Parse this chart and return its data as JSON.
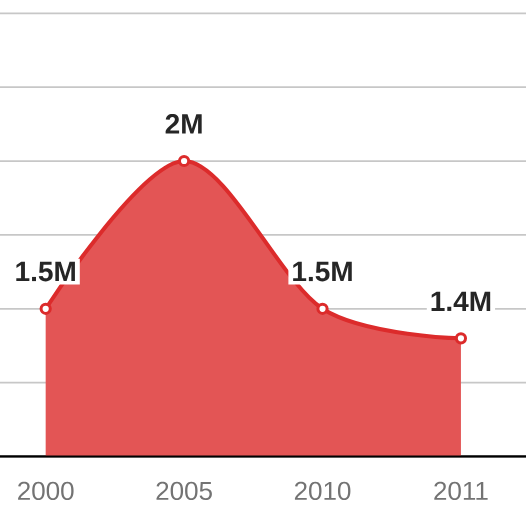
{
  "chart_data": {
    "type": "area",
    "categories": [
      "2000",
      "2005",
      "2010",
      "2011"
    ],
    "values": [
      1500000,
      2000000,
      1500000,
      1400000
    ],
    "value_labels": [
      "1.5M",
      "2M",
      "1.5M",
      "1.4M"
    ],
    "color": "#dc2b2b",
    "grid": "y",
    "marker": "circle"
  }
}
